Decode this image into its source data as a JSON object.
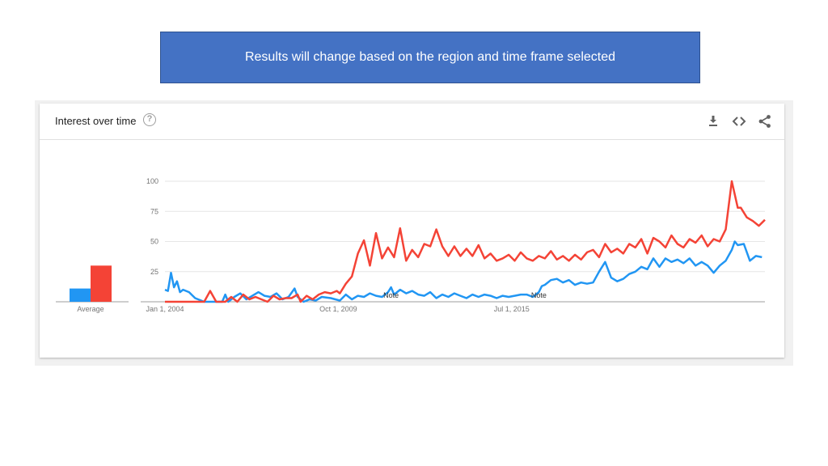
{
  "banner": {
    "text": "Results will change based on the region and time frame selected",
    "color": "#4472c4"
  },
  "card": {
    "title": "Interest over time",
    "icons": [
      "help-icon",
      "download-icon",
      "embed-icon",
      "share-icon"
    ]
  },
  "chart_data": {
    "type": "line",
    "x_ticks": [
      "Jan 1, 2004",
      "Oct 1, 2009",
      "Jul 1, 2015"
    ],
    "y_ticks": [
      25,
      50,
      75,
      100
    ],
    "ylim": [
      0,
      100
    ],
    "grid": true,
    "notes": [
      {
        "label": "Note",
        "x": 2011.5
      },
      {
        "label": "Note",
        "x": 2016.4
      }
    ],
    "average": {
      "label": "Average",
      "values": [
        {
          "color": "#2196f3",
          "value": 11
        },
        {
          "color": "#f44336",
          "value": 30
        }
      ]
    },
    "series": [
      {
        "color": "#2196f3",
        "points": [
          [
            2004.0,
            10
          ],
          [
            2004.1,
            9
          ],
          [
            2004.2,
            24
          ],
          [
            2004.3,
            12
          ],
          [
            2004.4,
            17
          ],
          [
            2004.5,
            8
          ],
          [
            2004.6,
            10
          ],
          [
            2004.8,
            8
          ],
          [
            2005.0,
            3
          ],
          [
            2005.3,
            0
          ],
          [
            2005.6,
            0
          ],
          [
            2005.9,
            0
          ],
          [
            2006.0,
            6
          ],
          [
            2006.1,
            0
          ],
          [
            2006.3,
            4
          ],
          [
            2006.5,
            7
          ],
          [
            2006.7,
            2
          ],
          [
            2006.9,
            5
          ],
          [
            2007.1,
            8
          ],
          [
            2007.3,
            5
          ],
          [
            2007.5,
            4
          ],
          [
            2007.7,
            7
          ],
          [
            2007.9,
            2
          ],
          [
            2008.1,
            4
          ],
          [
            2008.3,
            11
          ],
          [
            2008.4,
            4
          ],
          [
            2008.6,
            0
          ],
          [
            2008.8,
            2
          ],
          [
            2009.0,
            1
          ],
          [
            2009.2,
            4
          ],
          [
            2009.5,
            3
          ],
          [
            2009.8,
            1
          ],
          [
            2010.0,
            6
          ],
          [
            2010.2,
            2
          ],
          [
            2010.4,
            5
          ],
          [
            2010.6,
            4
          ],
          [
            2010.8,
            7
          ],
          [
            2011.0,
            5
          ],
          [
            2011.2,
            4
          ],
          [
            2011.4,
            8
          ],
          [
            2011.5,
            12
          ],
          [
            2011.6,
            6
          ],
          [
            2011.8,
            10
          ],
          [
            2012.0,
            7
          ],
          [
            2012.2,
            9
          ],
          [
            2012.4,
            6
          ],
          [
            2012.6,
            5
          ],
          [
            2012.8,
            8
          ],
          [
            2013.0,
            3
          ],
          [
            2013.2,
            6
          ],
          [
            2013.4,
            4
          ],
          [
            2013.6,
            7
          ],
          [
            2013.8,
            5
          ],
          [
            2014.0,
            3
          ],
          [
            2014.2,
            6
          ],
          [
            2014.4,
            4
          ],
          [
            2014.6,
            6
          ],
          [
            2014.8,
            5
          ],
          [
            2015.0,
            3
          ],
          [
            2015.2,
            5
          ],
          [
            2015.4,
            4
          ],
          [
            2015.6,
            5
          ],
          [
            2015.8,
            6
          ],
          [
            2016.0,
            6
          ],
          [
            2016.2,
            4
          ],
          [
            2016.4,
            8
          ],
          [
            2016.5,
            13
          ],
          [
            2016.6,
            14
          ],
          [
            2016.8,
            18
          ],
          [
            2017.0,
            19
          ],
          [
            2017.2,
            16
          ],
          [
            2017.4,
            18
          ],
          [
            2017.6,
            14
          ],
          [
            2017.8,
            16
          ],
          [
            2018.0,
            15
          ],
          [
            2018.2,
            16
          ],
          [
            2018.4,
            25
          ],
          [
            2018.6,
            33
          ],
          [
            2018.8,
            20
          ],
          [
            2019.0,
            17
          ],
          [
            2019.2,
            19
          ],
          [
            2019.4,
            23
          ],
          [
            2019.6,
            25
          ],
          [
            2019.8,
            29
          ],
          [
            2020.0,
            27
          ],
          [
            2020.2,
            36
          ],
          [
            2020.4,
            29
          ],
          [
            2020.6,
            36
          ],
          [
            2020.8,
            33
          ],
          [
            2021.0,
            35
          ],
          [
            2021.2,
            32
          ],
          [
            2021.4,
            36
          ],
          [
            2021.6,
            30
          ],
          [
            2021.8,
            33
          ],
          [
            2022.0,
            30
          ],
          [
            2022.2,
            24
          ],
          [
            2022.4,
            30
          ],
          [
            2022.6,
            34
          ],
          [
            2022.8,
            43
          ],
          [
            2022.9,
            50
          ],
          [
            2023.0,
            47
          ],
          [
            2023.2,
            48
          ],
          [
            2023.4,
            34
          ],
          [
            2023.6,
            38
          ],
          [
            2023.8,
            37
          ]
        ]
      },
      {
        "color": "#f44336",
        "points": [
          [
            2004.0,
            0
          ],
          [
            2004.5,
            0
          ],
          [
            2005.0,
            0
          ],
          [
            2005.3,
            0
          ],
          [
            2005.5,
            9
          ],
          [
            2005.7,
            0
          ],
          [
            2006.0,
            0
          ],
          [
            2006.2,
            4
          ],
          [
            2006.4,
            0
          ],
          [
            2006.6,
            6
          ],
          [
            2006.8,
            2
          ],
          [
            2007.0,
            4
          ],
          [
            2007.2,
            2
          ],
          [
            2007.4,
            0
          ],
          [
            2007.6,
            5
          ],
          [
            2007.8,
            2
          ],
          [
            2008.0,
            3
          ],
          [
            2008.2,
            3
          ],
          [
            2008.4,
            6
          ],
          [
            2008.5,
            0
          ],
          [
            2008.7,
            5
          ],
          [
            2008.9,
            2
          ],
          [
            2009.1,
            6
          ],
          [
            2009.3,
            8
          ],
          [
            2009.5,
            7
          ],
          [
            2009.7,
            9
          ],
          [
            2009.8,
            7
          ],
          [
            2010.0,
            15
          ],
          [
            2010.2,
            21
          ],
          [
            2010.4,
            40
          ],
          [
            2010.6,
            51
          ],
          [
            2010.8,
            30
          ],
          [
            2011.0,
            57
          ],
          [
            2011.2,
            36
          ],
          [
            2011.4,
            45
          ],
          [
            2011.6,
            37
          ],
          [
            2011.8,
            61
          ],
          [
            2012.0,
            34
          ],
          [
            2012.2,
            43
          ],
          [
            2012.4,
            37
          ],
          [
            2012.6,
            48
          ],
          [
            2012.8,
            46
          ],
          [
            2013.0,
            60
          ],
          [
            2013.2,
            46
          ],
          [
            2013.4,
            38
          ],
          [
            2013.6,
            46
          ],
          [
            2013.8,
            38
          ],
          [
            2014.0,
            44
          ],
          [
            2014.2,
            38
          ],
          [
            2014.4,
            47
          ],
          [
            2014.6,
            36
          ],
          [
            2014.8,
            40
          ],
          [
            2015.0,
            34
          ],
          [
            2015.2,
            36
          ],
          [
            2015.4,
            39
          ],
          [
            2015.6,
            34
          ],
          [
            2015.8,
            41
          ],
          [
            2016.0,
            36
          ],
          [
            2016.2,
            34
          ],
          [
            2016.4,
            38
          ],
          [
            2016.6,
            36
          ],
          [
            2016.8,
            42
          ],
          [
            2017.0,
            35
          ],
          [
            2017.2,
            38
          ],
          [
            2017.4,
            34
          ],
          [
            2017.6,
            39
          ],
          [
            2017.8,
            35
          ],
          [
            2018.0,
            41
          ],
          [
            2018.2,
            43
          ],
          [
            2018.4,
            37
          ],
          [
            2018.6,
            48
          ],
          [
            2018.8,
            41
          ],
          [
            2019.0,
            44
          ],
          [
            2019.2,
            40
          ],
          [
            2019.4,
            48
          ],
          [
            2019.6,
            45
          ],
          [
            2019.8,
            52
          ],
          [
            2020.0,
            40
          ],
          [
            2020.2,
            53
          ],
          [
            2020.4,
            50
          ],
          [
            2020.6,
            45
          ],
          [
            2020.8,
            55
          ],
          [
            2021.0,
            48
          ],
          [
            2021.2,
            45
          ],
          [
            2021.4,
            52
          ],
          [
            2021.6,
            49
          ],
          [
            2021.8,
            55
          ],
          [
            2022.0,
            46
          ],
          [
            2022.2,
            52
          ],
          [
            2022.4,
            50
          ],
          [
            2022.6,
            60
          ],
          [
            2022.8,
            100
          ],
          [
            2023.0,
            78
          ],
          [
            2023.1,
            78
          ],
          [
            2023.3,
            70
          ],
          [
            2023.5,
            67
          ],
          [
            2023.7,
            63
          ],
          [
            2023.9,
            68
          ]
        ]
      }
    ]
  }
}
